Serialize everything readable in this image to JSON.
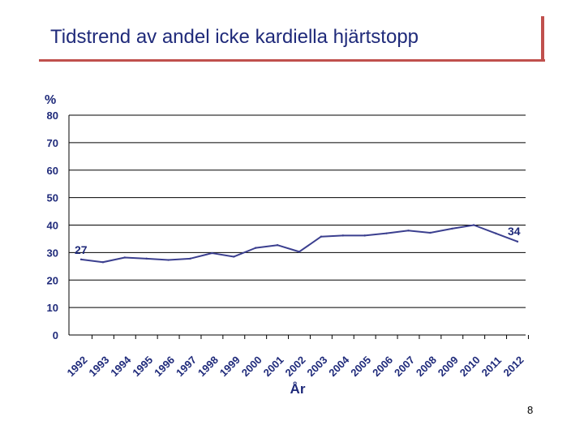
{
  "slide": {
    "title": "Tidstrend av andel icke kardiella hjärtstopp",
    "page_number": "8"
  },
  "colors": {
    "text": "#1f2a7a",
    "line": "#3b3f8f",
    "accent": "#c0504d",
    "grid": "#000000"
  },
  "chart_data": {
    "type": "line",
    "title": "",
    "xlabel": "År",
    "ylabel": "%",
    "ylim": [
      0,
      80
    ],
    "yticks": [
      0,
      10,
      20,
      30,
      40,
      50,
      60,
      70,
      80
    ],
    "grid": true,
    "categories": [
      "1992",
      "1993",
      "1994",
      "1995",
      "1996",
      "1997",
      "1998",
      "1999",
      "2000",
      "2001",
      "2002",
      "2003",
      "2004",
      "2005",
      "2006",
      "2007",
      "2008",
      "2009",
      "2010",
      "2011",
      "2012"
    ],
    "series": [
      {
        "values": [
          27.5,
          26.5,
          28.2,
          27.8,
          27.3,
          27.8,
          29.8,
          28.5,
          31.7,
          32.7,
          30.3,
          35.8,
          36.2,
          36.2,
          37.0,
          38.0,
          37.2,
          38.7,
          40.0,
          37.0,
          34.0
        ]
      }
    ],
    "annotations": [
      {
        "text": "27",
        "category": "1992"
      },
      {
        "text": "34",
        "category": "2012"
      }
    ]
  }
}
